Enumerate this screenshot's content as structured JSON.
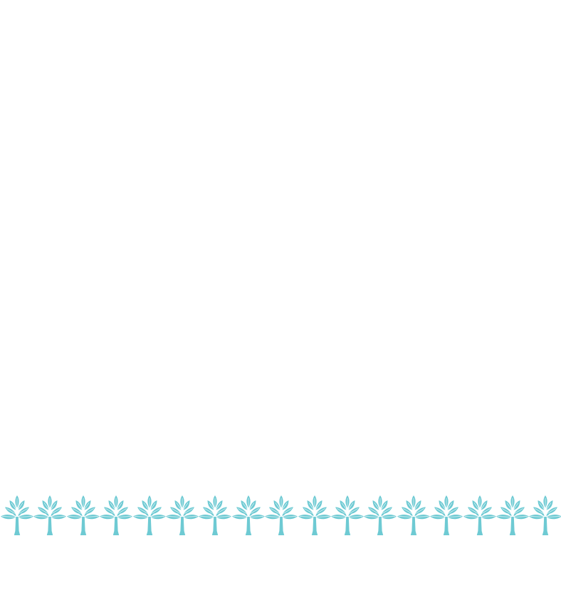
{
  "decoration": {
    "icon": "tree-icon",
    "count": 17,
    "color": "#6ecad3",
    "background": "#ffffff"
  }
}
